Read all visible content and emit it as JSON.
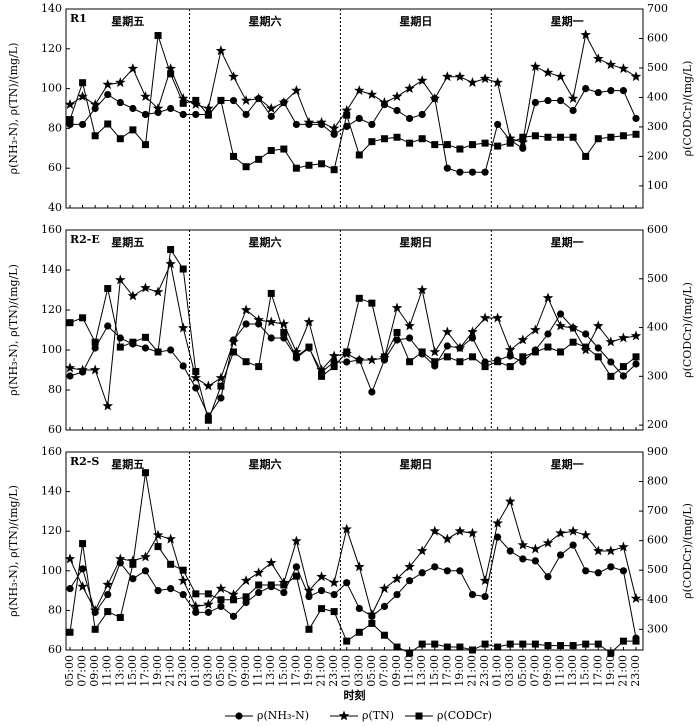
{
  "chart_data": [
    {
      "type": "line",
      "panel_label": "R1",
      "days": [
        "星期五",
        "星期六",
        "星期日",
        "星期一"
      ],
      "ylabel": "ρ(NH₃-N), ρ(TN)/(mg/L)",
      "y2label": "ρ(CODCr)/(mg/L)",
      "ylim": [
        40,
        140
      ],
      "yticks": [
        40,
        60,
        80,
        100,
        120,
        140
      ],
      "y2lim": [
        25,
        700
      ],
      "y2ticks": [
        100,
        200,
        300,
        400,
        500,
        600,
        700
      ],
      "series": [
        {
          "name": "ρ(NH₃-N)",
          "color": "#000",
          "marker": "circle",
          "values": [
            82,
            82,
            90,
            97,
            93,
            90,
            87,
            88,
            90,
            87,
            87,
            87,
            94,
            94,
            87,
            95,
            86,
            93,
            82,
            82,
            82,
            77,
            81,
            85,
            82,
            92,
            89,
            85,
            87,
            95,
            60,
            58,
            58,
            58,
            82,
            74,
            70,
            93,
            94,
            94,
            89,
            100,
            98,
            99,
            99,
            85
          ]
        },
        {
          "name": "ρ(TN)",
          "color": "#000",
          "marker": "star",
          "values": [
            92,
            96,
            92,
            102,
            103,
            110,
            96,
            90,
            110,
            95,
            92,
            90,
            119,
            106,
            94,
            95,
            90,
            93,
            99,
            83,
            83,
            80,
            89,
            99,
            97,
            93,
            96,
            100,
            104,
            95,
            106,
            106,
            103,
            105,
            103,
            75,
            73,
            111,
            108,
            106,
            95,
            127,
            115,
            112,
            110,
            106
          ]
        },
        {
          "name": "ρ(CODCr)",
          "color": "#000",
          "marker": "square",
          "axis": "y2",
          "values": [
            325,
            450,
            270,
            310,
            260,
            290,
            240,
            610,
            480,
            380,
            390,
            340,
            390,
            200,
            165,
            190,
            220,
            225,
            160,
            170,
            175,
            155,
            340,
            205,
            250,
            260,
            265,
            245,
            260,
            240,
            240,
            225,
            240,
            245,
            235,
            245,
            265,
            270,
            265,
            265,
            265,
            200,
            260,
            265,
            270,
            275
          ]
        }
      ]
    },
    {
      "type": "line",
      "panel_label": "R2-E",
      "days": [
        "星期五",
        "星期六",
        "星期日",
        "星期一"
      ],
      "ylabel": "ρ(NH₃-N), ρ(TN)/(mg/L)",
      "y2label": "ρ(CODCr)/(mg/L)",
      "ylim": [
        60,
        160
      ],
      "yticks": [
        60,
        80,
        100,
        120,
        140,
        160
      ],
      "y2lim": [
        190,
        600
      ],
      "y2ticks": [
        200,
        300,
        400,
        500,
        600
      ],
      "series": [
        {
          "color": "#000",
          "marker": "circle",
          "values": [
            87,
            89,
            101,
            112,
            106,
            103,
            101,
            99,
            100,
            92,
            81,
            67,
            76,
            105,
            113,
            113,
            106,
            106,
            96,
            101,
            89,
            94,
            94,
            95,
            79,
            95,
            105,
            106,
            98,
            92,
            102,
            101,
            106,
            94,
            95,
            97,
            94,
            100,
            108,
            118,
            111,
            108,
            101,
            94,
            87,
            93
          ]
        },
        {
          "color": "#000",
          "marker": "star",
          "values": [
            91,
            90,
            90,
            72,
            135,
            127,
            131,
            129,
            143,
            111,
            86,
            82,
            86,
            104,
            120,
            115,
            114,
            113,
            99,
            114,
            90,
            97,
            98,
            95,
            95,
            96,
            121,
            112,
            130,
            99,
            109,
            101,
            109,
            116,
            116,
            100,
            105,
            110,
            126,
            112,
            111,
            100,
            112,
            104,
            106,
            107
          ]
        },
        {
          "color": "#000",
          "marker": "square",
          "axis": "y2",
          "values": [
            410,
            420,
            370,
            480,
            360,
            370,
            380,
            350,
            560,
            520,
            310,
            210,
            280,
            350,
            330,
            320,
            470,
            390,
            340,
            360,
            300,
            320,
            350,
            460,
            450,
            340,
            390,
            330,
            350,
            330,
            340,
            330,
            340,
            320,
            330,
            320,
            340,
            350,
            360,
            350,
            370,
            360,
            340,
            300,
            320,
            340
          ]
        }
      ]
    },
    {
      "type": "line",
      "panel_label": "R2-S",
      "days": [
        "星期五",
        "星期六",
        "星期日",
        "星期一"
      ],
      "ylabel": "ρ(NH₃-N), ρ(TN)/(mg/L)",
      "y2label": "ρ(CODCr)/(mg/L)",
      "xlabel": "时刻",
      "categories": [
        "05:00",
        "07:00",
        "09:00",
        "11:00",
        "13:00",
        "15:00",
        "17:00",
        "19:00",
        "21:00",
        "23:00",
        "01:00",
        "03:00",
        "05:00",
        "07:00",
        "09:00",
        "11:00",
        "13:00",
        "15:00",
        "17:00",
        "19:00",
        "21:00",
        "23:00",
        "01:00",
        "03:00",
        "05:00",
        "07:00",
        "09:00",
        "11:00",
        "13:00",
        "15:00",
        "17:00",
        "19:00",
        "21:00",
        "23:00",
        "01:00",
        "03:00",
        "05:00",
        "07:00",
        "09:00",
        "11:00",
        "13:00",
        "15:00",
        "17:00",
        "19:00",
        "21:00",
        "23:00"
      ],
      "ylim": [
        60,
        160
      ],
      "yticks": [
        60,
        80,
        100,
        120,
        140,
        160
      ],
      "y2lim": [
        230,
        900
      ],
      "y2ticks": [
        300,
        400,
        500,
        600,
        700,
        800,
        900
      ],
      "series": [
        {
          "color": "#000",
          "marker": "circle",
          "values": [
            91,
            101,
            79,
            88,
            104,
            96,
            100,
            90,
            91,
            88,
            79,
            79,
            82,
            77,
            84,
            89,
            92,
            89,
            102,
            87,
            90,
            88,
            94,
            81,
            77,
            82,
            88,
            95,
            99,
            102,
            100,
            100,
            88,
            87,
            117,
            110,
            106,
            105,
            97,
            108,
            113,
            100,
            99,
            102,
            100,
            66
          ]
        },
        {
          "color": "#000",
          "marker": "star",
          "values": [
            106,
            92,
            80,
            93,
            106,
            105,
            107,
            118,
            116,
            95,
            82,
            83,
            91,
            88,
            95,
            99,
            104,
            94,
            115,
            90,
            97,
            94,
            121,
            102,
            78,
            91,
            96,
            102,
            110,
            120,
            116,
            120,
            119,
            95,
            124,
            135,
            113,
            111,
            114,
            119,
            120,
            118,
            110,
            110,
            112,
            86
          ]
        },
        {
          "color": "#000",
          "marker": "square",
          "axis": "y2",
          "values": [
            290,
            590,
            300,
            360,
            340,
            520,
            830,
            580,
            520,
            500,
            420,
            420,
            400,
            400,
            410,
            450,
            450,
            450,
            480,
            300,
            370,
            360,
            260,
            290,
            320,
            280,
            240,
            220,
            250,
            250,
            240,
            240,
            230,
            250,
            240,
            250,
            250,
            250,
            245,
            245,
            245,
            250,
            250,
            220,
            260,
            260
          ]
        }
      ]
    }
  ]
}
